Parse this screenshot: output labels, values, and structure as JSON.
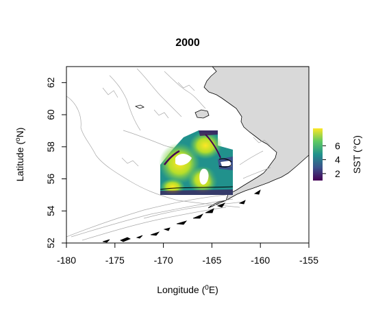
{
  "title": "2000",
  "axes": {
    "x": {
      "label_text": "Longitude (",
      "label_sup": "0",
      "label_unit": "E)",
      "ticks": [
        "-180",
        "-175",
        "-170",
        "-165",
        "-160",
        "-155"
      ],
      "tick_values": [
        -180,
        -175,
        -170,
        -165,
        -160,
        -155
      ],
      "range": [
        -180,
        -155
      ]
    },
    "y": {
      "label_text": "Latitude (",
      "label_sup": "o",
      "label_unit": "N)",
      "ticks": [
        "52",
        "54",
        "56",
        "58",
        "60",
        "62"
      ],
      "tick_values": [
        52,
        54,
        56,
        58,
        60,
        62
      ],
      "range": [
        52,
        63
      ]
    }
  },
  "legend": {
    "title": "SST (°C)",
    "ticks": [
      "2",
      "4",
      "6"
    ],
    "tick_values": [
      2,
      4,
      6
    ],
    "range": [
      1,
      8.5
    ],
    "colors": [
      "#440154",
      "#3b528b",
      "#21918c",
      "#5ec962",
      "#fde725"
    ]
  },
  "colors": {
    "land": "#d9d9d9",
    "coast": "#000000",
    "bathymetry": "#a8a8a8",
    "frame": "#000000"
  }
}
